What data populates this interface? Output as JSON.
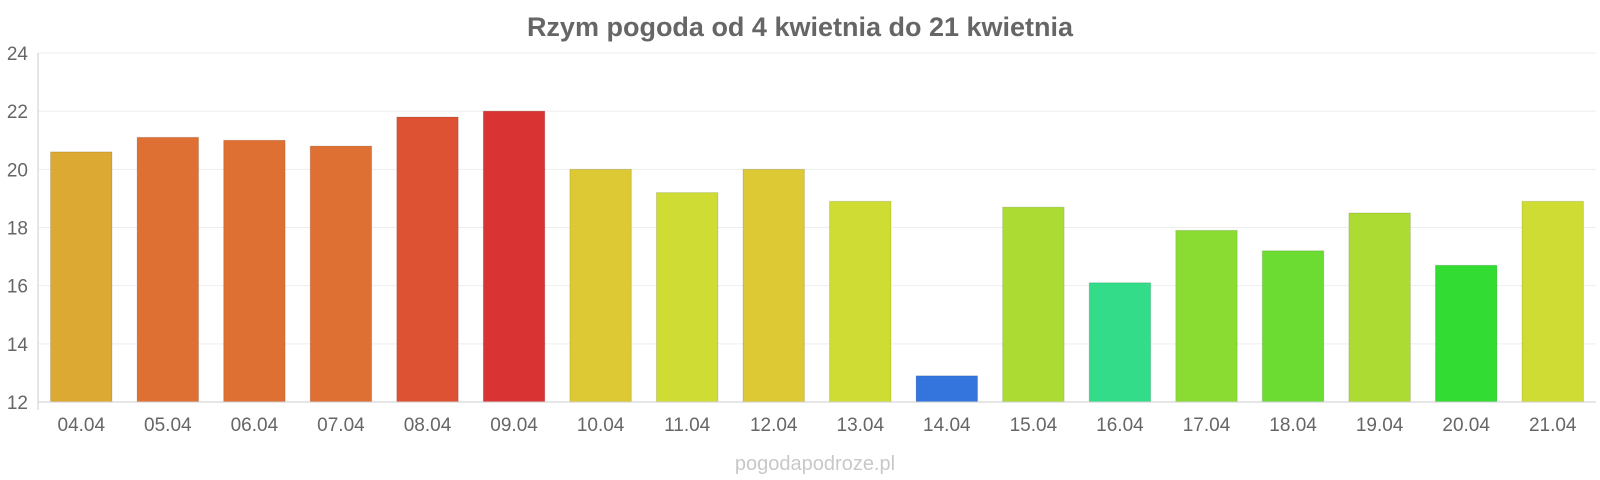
{
  "chart_data": {
    "type": "bar",
    "title": "Rzym pogoda od 4 kwietnia do 21 kwietnia",
    "xlabel": "",
    "ylabel": "",
    "ylim": [
      12,
      24
    ],
    "yticks": [
      12,
      14,
      16,
      18,
      20,
      22,
      24
    ],
    "grid": true,
    "legend": "none",
    "categories": [
      "04.04",
      "05.04",
      "06.04",
      "07.04",
      "08.04",
      "09.04",
      "10.04",
      "11.04",
      "12.04",
      "13.04",
      "14.04",
      "15.04",
      "16.04",
      "17.04",
      "18.04",
      "19.04",
      "20.04",
      "21.04"
    ],
    "values": [
      20.6,
      21.1,
      21.0,
      20.8,
      21.8,
      22.0,
      20.0,
      19.2,
      20.0,
      18.9,
      12.9,
      18.7,
      16.1,
      17.9,
      17.2,
      18.5,
      16.7,
      18.9
    ],
    "colors": [
      "#dcaa33",
      "#df7033",
      "#df7033",
      "#df7033",
      "#dd5233",
      "#d93333",
      "#dcc933",
      "#cfdc33",
      "#dcc933",
      "#cfdc33",
      "#3375dc",
      "#acdc33",
      "#33dc89",
      "#8adc33",
      "#6cdc33",
      "#acdc33",
      "#33dc33",
      "#cfdc33"
    ],
    "watermark": "pogodapodroze.pl"
  }
}
